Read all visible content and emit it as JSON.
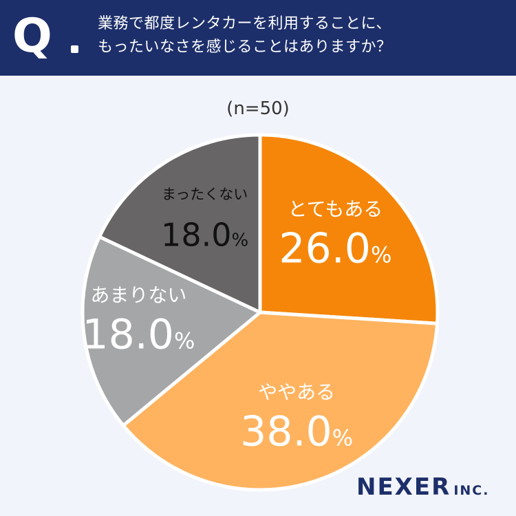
{
  "header": {
    "q_label": "Q",
    "question_lines": [
      "業務で都度レンタカーを利用することに、",
      "もったいなさを感じることはありますか？"
    ]
  },
  "sample_size": "(n=50)",
  "chart_data": {
    "type": "pie",
    "title": "業務で都度レンタカーを利用することに、もったいなさを感じることはありますか？",
    "slices": [
      {
        "label": "とてもある",
        "value": 26.0,
        "display": "26.0",
        "color": "#f5860a",
        "text_color": "#ffffff"
      },
      {
        "label": "ややある",
        "value": 38.0,
        "display": "38.0",
        "color": "#ffb35f",
        "text_color": "#ffffff"
      },
      {
        "label": "あまりない",
        "value": 18.0,
        "display": "18.0",
        "color": "#a5a6a8",
        "text_color": "#ffffff"
      },
      {
        "label": "まったくない",
        "value": 18.0,
        "display": "18.0",
        "color": "#676565",
        "text_color": "#111111"
      }
    ],
    "unit": "%",
    "start": "top",
    "direction": "clockwise"
  },
  "logo": {
    "main": "NEXER",
    "suffix": "INC."
  }
}
